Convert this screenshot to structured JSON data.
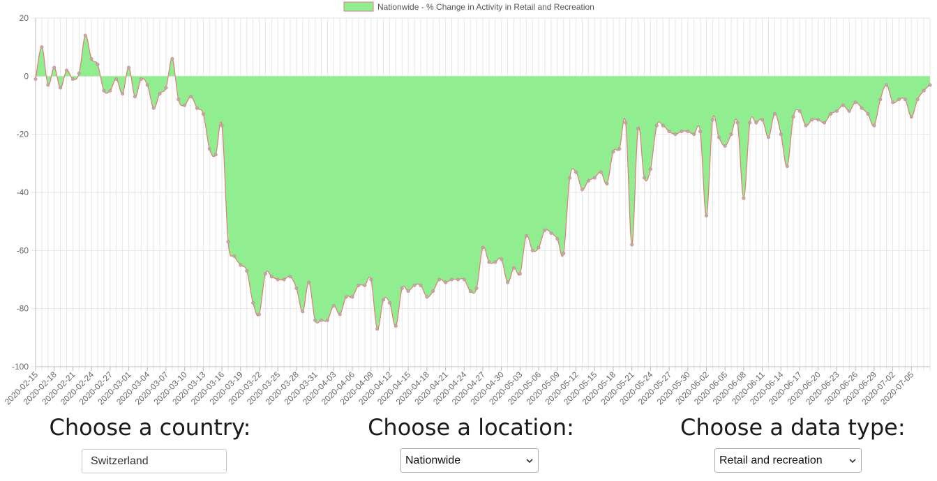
{
  "colors": {
    "fill": "#90ee90",
    "line": "#e07b7b",
    "point": "#b0b0b0",
    "grid": "#e6e6e6",
    "legend_fill": "#90ee90",
    "legend_border": "#e07b7b"
  },
  "controls": {
    "country_title": "Choose a country:",
    "country_value": "Switzerland",
    "location_title": "Choose a location:",
    "location_value": "Nationwide",
    "datatype_title": "Choose a data type:",
    "datatype_value": "Retail and recreation",
    "chevron_icon": "chevron-down-icon"
  },
  "chart_data": {
    "type": "area",
    "series": [
      {
        "name": "Nationwide - % Change in Activity in Retail and Recreation",
        "start_date": "2020-02-15",
        "values": [
          -1,
          10,
          -3,
          3,
          -4,
          2,
          -1,
          1,
          14,
          6,
          4,
          -5,
          -5,
          -1,
          -6,
          3,
          -7,
          -1,
          -3,
          -11,
          -6,
          -4,
          6,
          -8,
          -10,
          -7,
          -11,
          -13,
          -25,
          -27,
          -17,
          -57,
          -62,
          -65,
          -67,
          -78,
          -82,
          -68,
          -69,
          -70,
          -70,
          -69,
          -73,
          -81,
          -71,
          -84,
          -84,
          -84,
          -79,
          -82,
          -76,
          -76,
          -72,
          -72,
          -70,
          -87,
          -77,
          -78,
          -86,
          -73,
          -74,
          -72,
          -72,
          -76,
          -74,
          -70,
          -71,
          -70,
          -70,
          -70,
          -74,
          -73,
          -59,
          -64,
          -64,
          -63,
          -71,
          -66,
          -68,
          -55,
          -60,
          -59,
          -53,
          -54,
          -56,
          -61,
          -35,
          -33,
          -39,
          -36,
          -35,
          -33,
          -37,
          -26,
          -25,
          -16,
          -58,
          -18,
          -35,
          -32,
          -17,
          -17,
          -19,
          -20,
          -19,
          -19,
          -20,
          -19,
          -48,
          -15,
          -21,
          -24,
          -20,
          -16,
          -42,
          -16,
          -16,
          -15,
          -21,
          -13,
          -20,
          -31,
          -14,
          -12,
          -17,
          -15,
          -15,
          -16,
          -13,
          -12,
          -10,
          -12,
          -9,
          -11,
          -13,
          -17,
          -8,
          -3,
          -9,
          -8,
          -8,
          -14,
          -8,
          -5,
          -3
        ]
      }
    ],
    "x_tick_labels": [
      "2020-02-15",
      "2020-02-18",
      "2020-02-21",
      "2020-02-24",
      "2020-02-27",
      "2020-03-01",
      "2020-03-04",
      "2020-03-07",
      "2020-03-10",
      "2020-03-13",
      "2020-03-16",
      "2020-03-19",
      "2020-03-22",
      "2020-03-25",
      "2020-03-28",
      "2020-03-31",
      "2020-04-03",
      "2020-04-06",
      "2020-04-09",
      "2020-04-12",
      "2020-04-15",
      "2020-04-18",
      "2020-04-21",
      "2020-04-24",
      "2020-04-27",
      "2020-04-30",
      "2020-05-03",
      "2020-05-06",
      "2020-05-09",
      "2020-05-12",
      "2020-05-15",
      "2020-05-18",
      "2020-05-21",
      "2020-05-24",
      "2020-05-27",
      "2020-05-30",
      "2020-06-02",
      "2020-06-05",
      "2020-06-08",
      "2020-06-11",
      "2020-06-14",
      "2020-06-17",
      "2020-06-20",
      "2020-06-23",
      "2020-06-26",
      "2020-06-29",
      "2020-07-02",
      "2020-07-05"
    ],
    "y_ticks": [
      20,
      0,
      -20,
      -40,
      -60,
      -80,
      -100
    ],
    "ylim": [
      -100,
      20
    ],
    "grid": true,
    "legend_position": "top-center",
    "title": "",
    "xlabel": "",
    "ylabel": ""
  }
}
